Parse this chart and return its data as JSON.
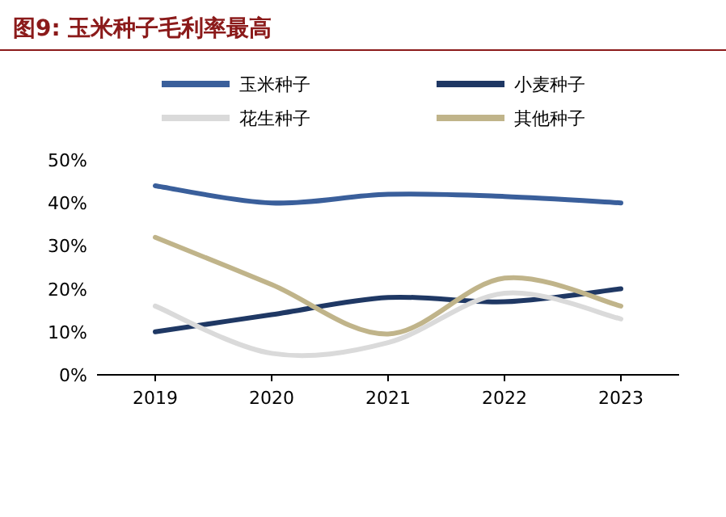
{
  "chart_data": {
    "type": "line",
    "title": "图9:  玉米种子毛利率最高",
    "categories": [
      "2019",
      "2020",
      "2021",
      "2022",
      "2023"
    ],
    "series": [
      {
        "name": "玉米种子",
        "color": "#3a5f9b",
        "values": [
          44,
          40,
          42,
          41.5,
          40
        ]
      },
      {
        "name": "小麦种子",
        "color": "#1f3864",
        "values": [
          10,
          14,
          18,
          17,
          20
        ]
      },
      {
        "name": "花生种子",
        "color": "#dadada",
        "values": [
          16,
          5,
          7.5,
          19,
          13
        ]
      },
      {
        "name": "其他种子",
        "color": "#c0b48a",
        "values": [
          32,
          21,
          9.5,
          22.5,
          16
        ]
      }
    ],
    "ylim": [
      0,
      50
    ],
    "yticks": [
      {
        "value": 0,
        "label": "0%"
      },
      {
        "value": 10,
        "label": "10%"
      },
      {
        "value": 20,
        "label": "20%"
      },
      {
        "value": 30,
        "label": "30%"
      },
      {
        "value": 40,
        "label": "40%"
      },
      {
        "value": 50,
        "label": "50%"
      }
    ],
    "legend": "top",
    "grid": false,
    "marker": "none",
    "line_style": "solid"
  }
}
